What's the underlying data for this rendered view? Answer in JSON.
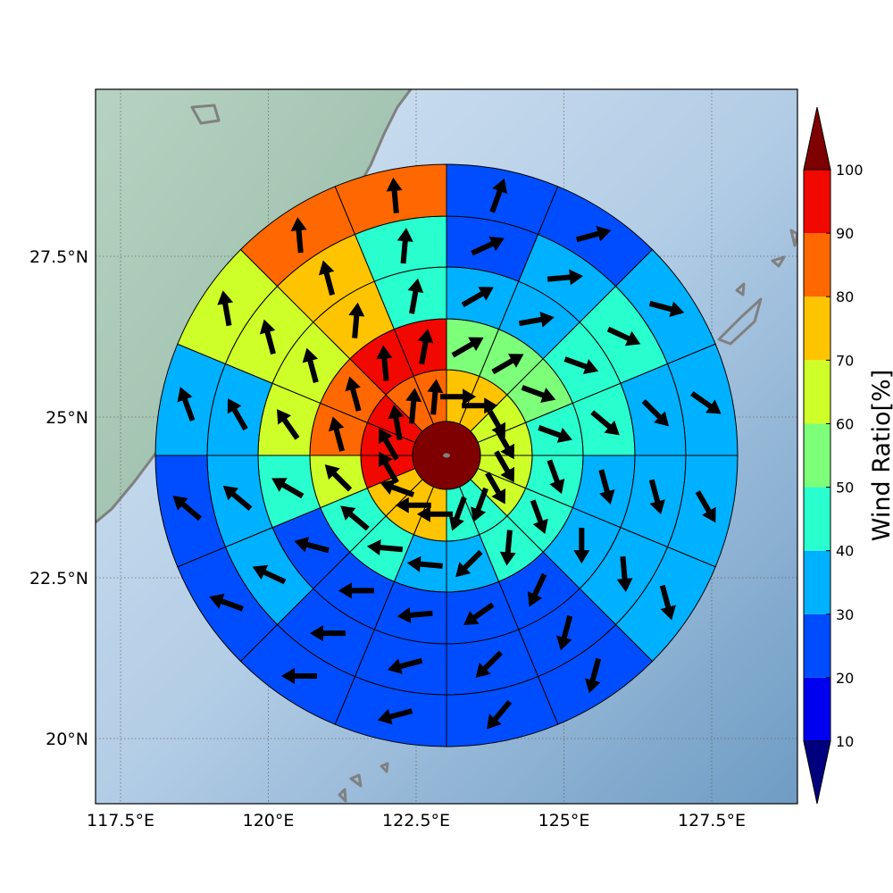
{
  "chart_data": {
    "type": "polar-sector-map",
    "map": {
      "lon_range": [
        116.5,
        128.9
      ],
      "lat_range": [
        18.9,
        29.8
      ],
      "grid": true,
      "x_ticks": [
        "117.5°E",
        "120°E",
        "122.5°E",
        "125°E",
        "127.5°E"
      ],
      "x_tick_values": [
        117.5,
        120,
        122.5,
        125,
        127.5
      ],
      "y_ticks": [
        "27.5°N",
        "25°N",
        "22.5°N",
        "20°N"
      ],
      "y_tick_values": [
        27.5,
        25,
        22.5,
        20
      ]
    },
    "center": {
      "lon": 122.5,
      "lat": 24.5,
      "value": 100
    },
    "ring_count": 5,
    "sectors_per_ring": 16,
    "sector_order": "clockwise from north (index 0 = 0°–22.5°)",
    "rings": [
      {
        "ring": 1,
        "values": [
          75,
          75,
          65,
          65,
          65,
          65,
          45,
          45,
          75,
          75,
          75,
          90,
          90,
          90,
          85,
          85
        ],
        "arrow_directions_deg": [
          90,
          90,
          150,
          150,
          150,
          150,
          200,
          200,
          270,
          270,
          290,
          330,
          330,
          350,
          5,
          5
        ]
      },
      {
        "ring": 2,
        "values": [
          55,
          55,
          55,
          45,
          45,
          45,
          45,
          35,
          35,
          45,
          45,
          65,
          85,
          85,
          95,
          95
        ],
        "arrow_directions_deg": [
          60,
          60,
          110,
          110,
          160,
          160,
          185,
          225,
          275,
          275,
          310,
          315,
          345,
          345,
          355,
          10
        ]
      },
      {
        "ring": 3,
        "values": [
          35,
          35,
          45,
          45,
          35,
          35,
          25,
          25,
          25,
          25,
          25,
          45,
          65,
          65,
          75,
          45
        ],
        "arrow_directions_deg": [
          60,
          80,
          110,
          130,
          165,
          180,
          205,
          235,
          265,
          270,
          285,
          300,
          325,
          345,
          5,
          10
        ]
      },
      {
        "ring": 4,
        "values": [
          25,
          35,
          45,
          35,
          35,
          35,
          25,
          25,
          25,
          25,
          35,
          35,
          35,
          65,
          75,
          45
        ],
        "arrow_directions_deg": [
          65,
          85,
          115,
          135,
          165,
          175,
          195,
          225,
          255,
          270,
          295,
          310,
          330,
          345,
          345,
          5
        ]
      },
      {
        "ring": 5,
        "values": [
          25,
          25,
          35,
          35,
          35,
          35,
          25,
          25,
          25,
          25,
          25,
          25,
          35,
          65,
          85,
          85
        ],
        "arrow_directions_deg": [
          20,
          75,
          105,
          125,
          150,
          165,
          195,
          220,
          255,
          270,
          290,
          310,
          340,
          350,
          355,
          355
        ]
      }
    ],
    "colorbar": {
      "label": "Wind Ratio[%]",
      "ticks": [
        10,
        20,
        30,
        40,
        50,
        60,
        70,
        80,
        90,
        100
      ],
      "extend": "both",
      "bins": [
        {
          "min": 0,
          "max": 10,
          "color": "#00007f"
        },
        {
          "min": 10,
          "max": 20,
          "color": "#0000f1"
        },
        {
          "min": 20,
          "max": 30,
          "color": "#004dff"
        },
        {
          "min": 30,
          "max": 40,
          "color": "#00b1ff"
        },
        {
          "min": 40,
          "max": 50,
          "color": "#29ffce"
        },
        {
          "min": 50,
          "max": 60,
          "color": "#7dff7a"
        },
        {
          "min": 60,
          "max": 70,
          "color": "#ceff29"
        },
        {
          "min": 70,
          "max": 80,
          "color": "#ffc400"
        },
        {
          "min": 80,
          "max": 90,
          "color": "#ff6800"
        },
        {
          "min": 90,
          "max": 100,
          "color": "#f10800"
        },
        {
          "min": 100,
          "max": 110,
          "color": "#7f0000"
        }
      ]
    },
    "colors": {
      "coastline": "#808080",
      "land": "#9fbfa9",
      "sea": "#a9c6e1",
      "arrow": "#000000"
    }
  }
}
